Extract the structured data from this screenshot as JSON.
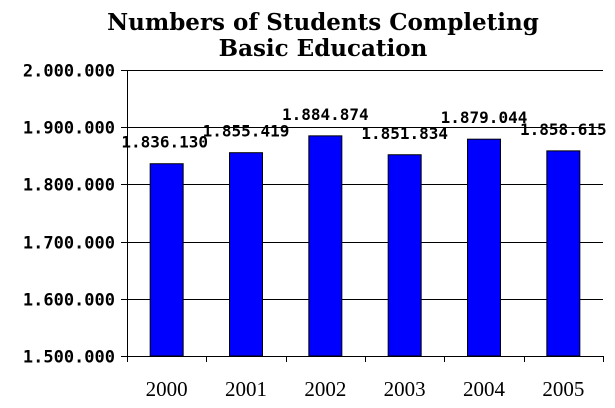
{
  "chart_data": {
    "type": "bar",
    "title": "Numbers of Students Completing Basic Education",
    "title_lines": [
      "Numbers of Students Completing",
      "Basic Education"
    ],
    "categories": [
      "2000",
      "2001",
      "2002",
      "2003",
      "2004",
      "2005"
    ],
    "values": [
      1836130,
      1855419,
      1884874,
      1851834,
      1879044,
      1858615
    ],
    "data_labels": [
      "1.836.130",
      "1.855.419",
      "1.884.874",
      "1.851.834",
      "1.879.044",
      "1.858.615"
    ],
    "ylim": [
      1500000,
      2000000
    ],
    "yticks": [
      1500000,
      1600000,
      1700000,
      1800000,
      1900000,
      2000000
    ],
    "ytick_labels": [
      "1.500.000",
      "1.600.000",
      "1.700.000",
      "1.800.000",
      "1.900.000",
      "2.000.000"
    ],
    "xlabel": "",
    "ylabel": "",
    "grid": true,
    "legend": "none",
    "colors": {
      "bar": "#0000ff",
      "gridline": "#000000"
    }
  }
}
